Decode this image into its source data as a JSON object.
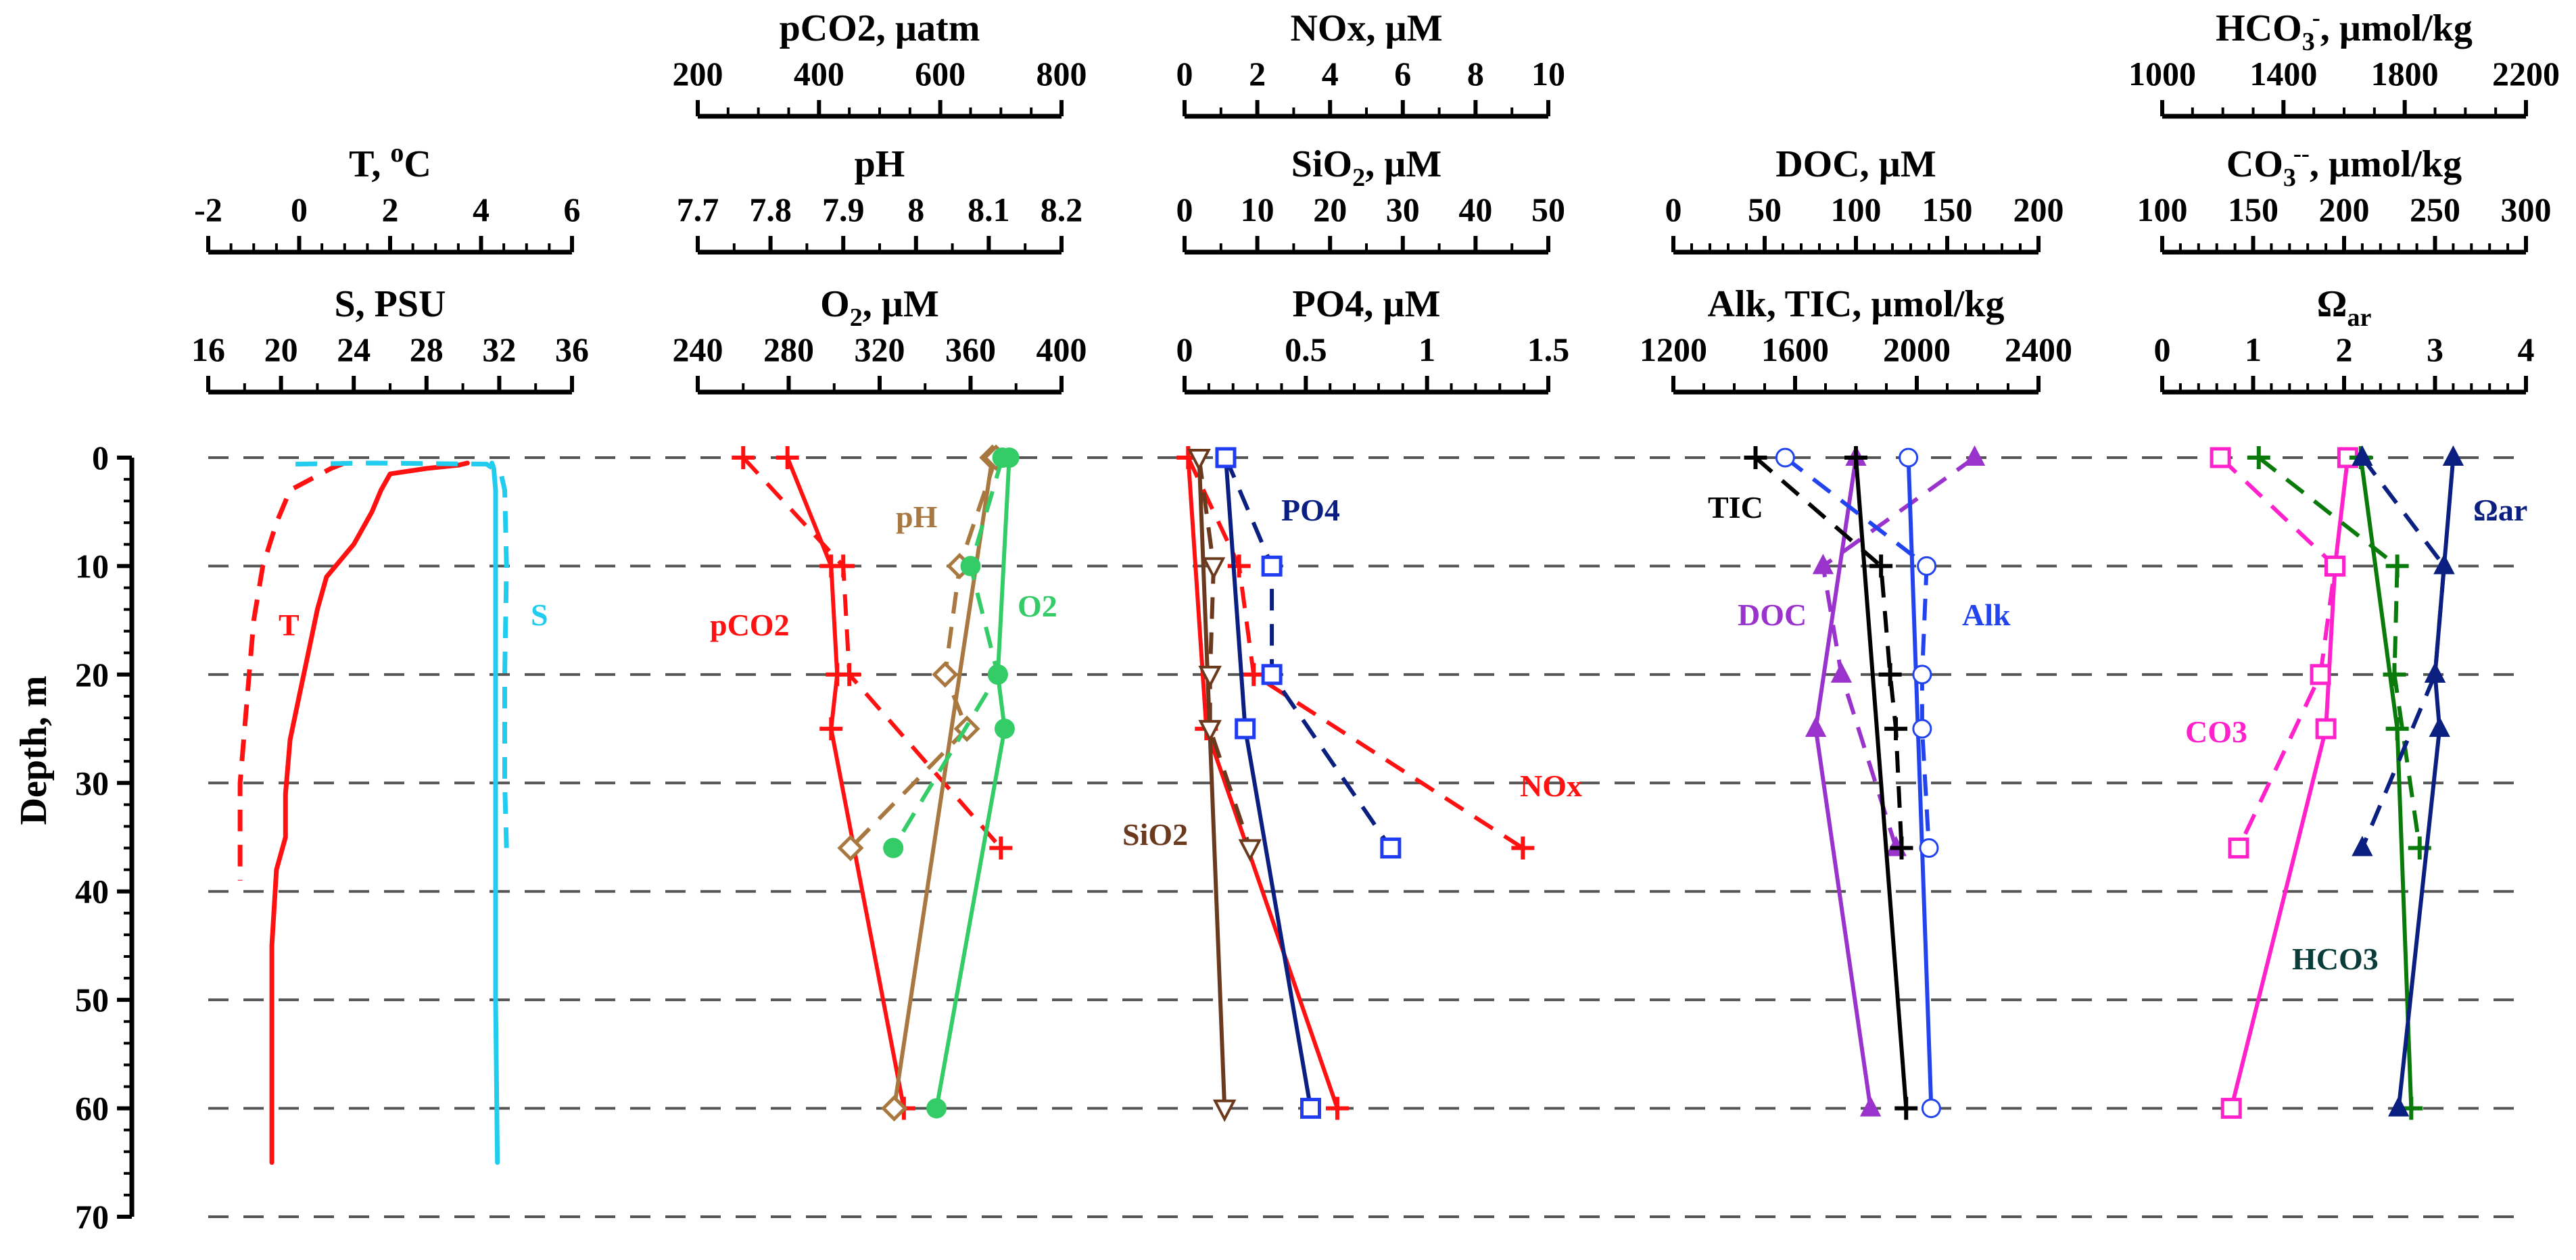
{
  "figure": {
    "ylabel": "Depth, m",
    "depth_ticks": [
      "0",
      "10",
      "20",
      "30",
      "40",
      "50",
      "60",
      "70"
    ]
  },
  "panels": [
    {
      "axes": [
        {
          "title": "T, oC",
          "title_parts": [
            "T, ",
            "o",
            "C"
          ],
          "title_style": "sup",
          "ticks": [
            "-2",
            "0",
            "2",
            "4",
            "6"
          ],
          "range": [
            -2,
            6
          ],
          "minor": 4
        },
        {
          "title": "S, PSU",
          "ticks": [
            "16",
            "20",
            "24",
            "28",
            "32",
            "36"
          ],
          "range": [
            16,
            36
          ],
          "minor": 2
        }
      ]
    },
    {
      "axes": [
        {
          "title": "pCO2, µatm",
          "ticks": [
            "200",
            "400",
            "600",
            "800"
          ],
          "range": [
            200,
            800
          ],
          "minor": 4
        },
        {
          "title": "pH",
          "ticks": [
            "7.7",
            "7.8",
            "7.9",
            "8",
            "8.1",
            "8.2"
          ],
          "range": [
            7.7,
            8.2
          ],
          "minor": 2
        },
        {
          "title": "O2, µM",
          "title_parts": [
            "O",
            "2",
            ", µM"
          ],
          "title_style": "sub",
          "ticks": [
            "240",
            "280",
            "320",
            "360",
            "400"
          ],
          "range": [
            240,
            400
          ],
          "minor": 2
        }
      ]
    },
    {
      "axes": [
        {
          "title": "NOx, µM",
          "ticks": [
            "0",
            "2",
            "4",
            "6",
            "8",
            "10"
          ],
          "range": [
            0,
            10
          ],
          "minor": 2
        },
        {
          "title": "SiO2, µM",
          "title_parts": [
            "SiO",
            "2",
            ", µM"
          ],
          "title_style": "sub",
          "ticks": [
            "0",
            "10",
            "20",
            "30",
            "40",
            "50"
          ],
          "range": [
            0,
            50
          ],
          "minor": 2
        },
        {
          "title": "PO4, µM",
          "ticks": [
            "0",
            "0.5",
            "1",
            "1.5"
          ],
          "range": [
            0,
            1.5
          ],
          "minor": 5
        }
      ]
    },
    {
      "axes": [
        {
          "title": "DOC, µM",
          "ticks": [
            "0",
            "50",
            "100",
            "150",
            "200"
          ],
          "range": [
            0,
            200
          ],
          "minor": 5
        },
        {
          "title": "Alk, TIC, µmol/kg",
          "ticks": [
            "1200",
            "1600",
            "2000",
            "2400"
          ],
          "range": [
            1200,
            2800
          ],
          "minor": 4
        }
      ]
    },
    {
      "axes": [
        {
          "title": "HCO3-, µmol/kg",
          "title_parts": [
            "HCO",
            "3",
            "-",
            ", µmol/kg"
          ],
          "title_style": "subsup",
          "ticks": [
            "1000",
            "1400",
            "1800",
            "2200"
          ],
          "range": [
            1000,
            2300
          ],
          "minor": 4
        },
        {
          "title": "CO3--, µmol/kg",
          "title_parts": [
            "CO",
            "3",
            "--",
            ", µmol/kg"
          ],
          "title_style": "subsup",
          "ticks": [
            "100",
            "150",
            "200",
            "250",
            "300"
          ],
          "range": [
            100,
            300
          ],
          "minor": 5
        },
        {
          "title": "Ωar",
          "title_parts": [
            "Ω",
            "ar"
          ],
          "title_style": "sub",
          "ticks": [
            "0",
            "1",
            "2",
            "3",
            "4"
          ],
          "range": [
            0,
            4
          ],
          "minor": 5
        }
      ]
    }
  ],
  "colors": {
    "T": "#ff1111",
    "S": "#22ccee",
    "pCO2": "#ff1111",
    "pH": "#a87840",
    "O2": "#33cc66",
    "NOx": "#ff1111",
    "SiO2": "#6b3a1e",
    "PO4": "#0a1f80",
    "PO4_marker": "#1f3cf0",
    "DOC": "#9933cc",
    "TIC": "#000000",
    "Alk": "#2244ee",
    "CO3": "#ff22cc",
    "HCO3": "#0a7a0a",
    "Omega": "#0a1f80",
    "grid": "#555555"
  },
  "series_labels": {
    "T": "T",
    "S": "S",
    "pCO2": "pCO2",
    "pH": "pH",
    "O2": "O2",
    "NOx": "NOx",
    "SiO2": "SiO2",
    "PO4": "PO4",
    "TIC": "TIC",
    "DOC": "DOC",
    "Alk": "Alk",
    "CO3": "CO3",
    "HCO3": "HCO3",
    "Omega": "Ωar"
  },
  "chart_data": {
    "type": "line",
    "ylabel": "Depth, m",
    "ylim": [
      0,
      70
    ],
    "y_inverted": true,
    "grid": "dashed horizontal at 10 m intervals",
    "series": [
      {
        "name": "T",
        "panel": 0,
        "axis": 0,
        "style": "solid",
        "marker": "none",
        "points": [
          [
            3.7,
            0.5
          ],
          [
            3.5,
            0.7
          ],
          [
            2.8,
            1
          ],
          [
            2.0,
            1.5
          ],
          [
            1.8,
            3
          ],
          [
            1.6,
            5
          ],
          [
            1.2,
            8
          ],
          [
            0.6,
            11
          ],
          [
            0.4,
            14
          ],
          [
            0.3,
            16
          ],
          [
            0.2,
            18
          ],
          [
            0.0,
            22
          ],
          [
            -0.2,
            26
          ],
          [
            -0.3,
            31
          ],
          [
            -0.3,
            35
          ],
          [
            -0.5,
            38
          ],
          [
            -0.6,
            45
          ],
          [
            -0.6,
            50
          ],
          [
            -0.6,
            58
          ],
          [
            -0.6,
            65
          ]
        ]
      },
      {
        "name": "T",
        "panel": 0,
        "axis": 0,
        "style": "dashed",
        "marker": "none",
        "points": [
          [
            1.0,
            0.5
          ],
          [
            0.7,
            1
          ],
          [
            -0.2,
            3
          ],
          [
            -0.5,
            6
          ],
          [
            -0.8,
            10
          ],
          [
            -1.0,
            15
          ],
          [
            -1.1,
            20
          ],
          [
            -1.2,
            25
          ],
          [
            -1.3,
            30
          ],
          [
            -1.3,
            35
          ],
          [
            -1.3,
            39
          ]
        ]
      },
      {
        "name": "S",
        "panel": 0,
        "axis": 1,
        "style": "solid",
        "marker": "none",
        "points": [
          [
            31.6,
            0.5
          ],
          [
            31.7,
            1
          ],
          [
            31.8,
            3
          ],
          [
            31.8,
            10
          ],
          [
            31.8,
            20
          ],
          [
            31.8,
            35
          ],
          [
            31.8,
            50
          ],
          [
            31.9,
            65
          ]
        ]
      },
      {
        "name": "S",
        "panel": 0,
        "axis": 1,
        "style": "dashed",
        "marker": "none",
        "points": [
          [
            20.8,
            0.6
          ],
          [
            25,
            0.5
          ],
          [
            31.3,
            0.6
          ],
          [
            32.1,
            1.5
          ],
          [
            32.3,
            3
          ],
          [
            32.4,
            10
          ],
          [
            32.3,
            20
          ],
          [
            32.3,
            30
          ],
          [
            32.4,
            36
          ]
        ]
      },
      {
        "name": "pCO2",
        "panel": 1,
        "axis": 0,
        "style": "solid",
        "marker": "plus",
        "points": [
          [
            348,
            0
          ],
          [
            420,
            10
          ],
          [
            430,
            20
          ],
          [
            420,
            25
          ],
          [
            540,
            60
          ]
        ]
      },
      {
        "name": "pCO2",
        "panel": 1,
        "axis": 0,
        "style": "dashed",
        "marker": "plus",
        "points": [
          [
            275,
            0
          ],
          [
            440,
            10
          ],
          [
            450,
            20
          ],
          [
            700,
            36
          ]
        ]
      },
      {
        "name": "pH",
        "panel": 1,
        "axis": 1,
        "style": "solid",
        "marker": "diamond",
        "points": [
          [
            8.105,
            0
          ],
          [
            7.97,
            60
          ]
        ]
      },
      {
        "name": "pH",
        "panel": 1,
        "axis": 1,
        "style": "dashed",
        "marker": "diamond",
        "points": [
          [
            8.11,
            0
          ],
          [
            8.06,
            10
          ],
          [
            8.04,
            20
          ],
          [
            8.07,
            25
          ],
          [
            7.91,
            36
          ]
        ]
      },
      {
        "name": "O2",
        "panel": 1,
        "axis": 2,
        "style": "solid",
        "marker": "circle",
        "points": [
          [
            377,
            0
          ],
          [
            372,
            20
          ],
          [
            375,
            25
          ],
          [
            345,
            60
          ]
        ]
      },
      {
        "name": "O2",
        "panel": 1,
        "axis": 2,
        "style": "dashed",
        "marker": "circle",
        "points": [
          [
            374,
            0
          ],
          [
            360,
            10
          ],
          [
            372,
            20
          ],
          [
            326,
            36
          ]
        ]
      },
      {
        "name": "NOx",
        "panel": 2,
        "axis": 0,
        "style": "solid",
        "marker": "plus",
        "points": [
          [
            0.1,
            0
          ],
          [
            0.6,
            25
          ],
          [
            4.2,
            60
          ]
        ]
      },
      {
        "name": "NOx",
        "panel": 2,
        "axis": 0,
        "style": "dashed",
        "marker": "plus",
        "points": [
          [
            0.1,
            0
          ],
          [
            1.5,
            10
          ],
          [
            1.9,
            20
          ],
          [
            9.3,
            36
          ]
        ]
      },
      {
        "name": "SiO2",
        "panel": 2,
        "axis": 1,
        "style": "solid",
        "marker": "triangle-down",
        "points": [
          [
            2,
            0
          ],
          [
            5.5,
            60
          ]
        ]
      },
      {
        "name": "SiO2",
        "panel": 2,
        "axis": 1,
        "style": "dashed",
        "marker": "triangle-down",
        "points": [
          [
            2,
            0
          ],
          [
            4,
            10
          ],
          [
            3.5,
            20
          ],
          [
            3.5,
            25
          ],
          [
            9,
            36
          ]
        ]
      },
      {
        "name": "PO4",
        "panel": 2,
        "axis": 2,
        "style": "solid",
        "marker": "square",
        "points": [
          [
            0.17,
            0
          ],
          [
            0.25,
            25
          ],
          [
            0.52,
            60
          ]
        ]
      },
      {
        "name": "PO4",
        "panel": 2,
        "axis": 2,
        "style": "dashed",
        "marker": "square",
        "points": [
          [
            0.17,
            0
          ],
          [
            0.36,
            10
          ],
          [
            0.36,
            20
          ],
          [
            0.85,
            36
          ]
        ]
      },
      {
        "name": "DOC",
        "panel": 3,
        "axis": 0,
        "style": "solid",
        "marker": "triangle-up",
        "points": [
          [
            100,
            0
          ],
          [
            78,
            25
          ],
          [
            108,
            60
          ]
        ]
      },
      {
        "name": "DOC",
        "panel": 3,
        "axis": 0,
        "style": "dashed",
        "marker": "triangle-up",
        "points": [
          [
            165,
            0
          ],
          [
            82,
            10
          ],
          [
            92,
            20
          ],
          [
            122,
            36
          ]
        ]
      },
      {
        "name": "TIC",
        "panel": 3,
        "axis": 1,
        "style": "solid",
        "marker": "plus",
        "points": [
          [
            2000,
            0
          ],
          [
            2220,
            60
          ]
        ]
      },
      {
        "name": "TIC",
        "panel": 3,
        "axis": 1,
        "style": "dashed",
        "marker": "plus",
        "points": [
          [
            1560,
            0
          ],
          [
            2110,
            10
          ],
          [
            2150,
            20
          ],
          [
            2175,
            25
          ],
          [
            2200,
            36
          ]
        ]
      },
      {
        "name": "Alk",
        "panel": 3,
        "axis": 1,
        "style": "solid",
        "marker": "circle-open",
        "points": [
          [
            2230,
            0
          ],
          [
            2330,
            60
          ]
        ]
      },
      {
        "name": "Alk",
        "panel": 3,
        "axis": 1,
        "style": "dashed",
        "marker": "circle-open",
        "points": [
          [
            1690,
            0
          ],
          [
            2310,
            10
          ],
          [
            2290,
            20
          ],
          [
            2290,
            25
          ],
          [
            2320,
            36
          ]
        ]
      },
      {
        "name": "CO3",
        "panel": 4,
        "axis": 1,
        "style": "solid",
        "marker": "square",
        "points": [
          [
            202,
            0
          ],
          [
            195,
            10
          ],
          [
            190,
            25
          ],
          [
            138,
            60
          ]
        ]
      },
      {
        "name": "CO3",
        "panel": 4,
        "axis": 1,
        "style": "dashed",
        "marker": "square",
        "points": [
          [
            132,
            0
          ],
          [
            195,
            10
          ],
          [
            187,
            20
          ],
          [
            142,
            36
          ]
        ]
      },
      {
        "name": "HCO3",
        "panel": 4,
        "axis": 0,
        "style": "solid",
        "marker": "plus",
        "points": [
          [
            1710,
            0
          ],
          [
            1840,
            25
          ],
          [
            1890,
            60
          ]
        ]
      },
      {
        "name": "HCO3",
        "panel": 4,
        "axis": 0,
        "style": "dashed",
        "marker": "plus",
        "points": [
          [
            1345,
            0
          ],
          [
            1840,
            10
          ],
          [
            1830,
            20
          ],
          [
            1920,
            36
          ]
        ]
      },
      {
        "name": "Ωar",
        "panel": 4,
        "axis": 2,
        "style": "solid",
        "marker": "triangle-up",
        "points": [
          [
            3.2,
            0
          ],
          [
            3.1,
            10
          ],
          [
            3.0,
            20
          ],
          [
            3.05,
            25
          ],
          [
            2.6,
            60
          ]
        ]
      },
      {
        "name": "Ωar",
        "panel": 4,
        "axis": 2,
        "style": "dashed",
        "marker": "triangle-up",
        "points": [
          [
            2.2,
            0
          ],
          [
            3.1,
            10
          ],
          [
            3.0,
            20
          ],
          [
            2.2,
            36
          ]
        ]
      }
    ]
  }
}
